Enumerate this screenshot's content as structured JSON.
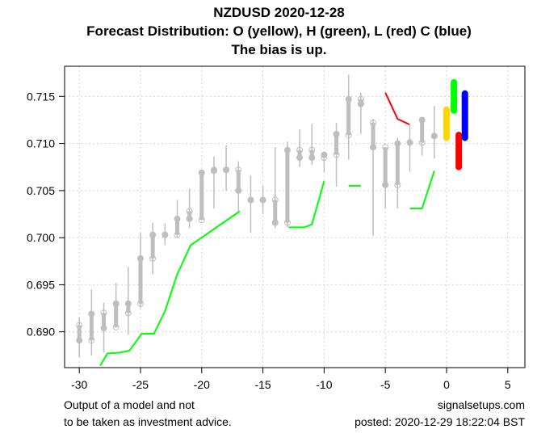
{
  "chart_data": {
    "type": "candlestick",
    "title": "NZDUSD 2020-12-28",
    "subtitle": "Forecast Distribution: O (yellow), H (green), L (red) C (blue)",
    "subtitle2": "The bias is up.",
    "xlabel": "",
    "ylabel": "",
    "xlim": [
      -31.2,
      6.4
    ],
    "ylim": [
      0.6862,
      0.7182
    ],
    "grid": true,
    "x_ticks": [
      -30,
      -25,
      -20,
      -15,
      -10,
      -5,
      0,
      5
    ],
    "x_tick_labels": [
      "-30",
      "-25",
      "-20",
      "-15",
      "-10",
      "-5",
      "0",
      "5"
    ],
    "y_ticks": [
      0.69,
      0.695,
      0.7,
      0.705,
      0.71,
      0.715
    ],
    "y_tick_labels": [
      "0.690",
      "0.695",
      "0.700",
      "0.705",
      "0.710",
      "0.715"
    ],
    "candles": [
      {
        "t": -30,
        "o": 0.6907,
        "h": 0.6915,
        "l": 0.6873,
        "c": 0.6891
      },
      {
        "t": -29,
        "o": 0.6891,
        "h": 0.6945,
        "l": 0.6875,
        "c": 0.6919
      },
      {
        "t": -28,
        "o": 0.692,
        "h": 0.6931,
        "l": 0.6878,
        "c": 0.6904
      },
      {
        "t": -27,
        "o": 0.6905,
        "h": 0.6952,
        "l": 0.6904,
        "c": 0.693
      },
      {
        "t": -26,
        "o": 0.692,
        "h": 0.6969,
        "l": 0.6897,
        "c": 0.693
      },
      {
        "t": -25,
        "o": 0.693,
        "h": 0.7005,
        "l": 0.6925,
        "c": 0.6978
      },
      {
        "t": -24,
        "o": 0.6978,
        "h": 0.7016,
        "l": 0.6961,
        "c": 0.7003
      },
      {
        "t": -23,
        "o": 0.7003,
        "h": 0.7015,
        "l": 0.6992,
        "c": 0.7003
      },
      {
        "t": -22,
        "o": 0.7003,
        "h": 0.704,
        "l": 0.7,
        "c": 0.702
      },
      {
        "t": -21,
        "o": 0.7028,
        "h": 0.7052,
        "l": 0.701,
        "c": 0.702
      },
      {
        "t": -20,
        "o": 0.7019,
        "h": 0.7069,
        "l": 0.7019,
        "c": 0.7069
      },
      {
        "t": -19,
        "o": 0.7071,
        "h": 0.7086,
        "l": 0.7031,
        "c": 0.7072
      },
      {
        "t": -18,
        "o": 0.7072,
        "h": 0.7098,
        "l": 0.705,
        "c": 0.7072
      },
      {
        "t": -17,
        "o": 0.7072,
        "h": 0.7081,
        "l": 0.7028,
        "c": 0.705
      },
      {
        "t": -16,
        "o": 0.704,
        "h": 0.7066,
        "l": 0.7005,
        "c": 0.704
      },
      {
        "t": -15,
        "o": 0.704,
        "h": 0.7055,
        "l": 0.7025,
        "c": 0.704
      },
      {
        "t": -14,
        "o": 0.704,
        "h": 0.7096,
        "l": 0.701,
        "c": 0.7016
      },
      {
        "t": -13,
        "o": 0.7016,
        "h": 0.7102,
        "l": 0.7011,
        "c": 0.7093
      },
      {
        "t": -12,
        "o": 0.7093,
        "h": 0.7115,
        "l": 0.7075,
        "c": 0.7085
      },
      {
        "t": -11,
        "o": 0.7093,
        "h": 0.7121,
        "l": 0.7077,
        "c": 0.7085
      },
      {
        "t": -10,
        "o": 0.7085,
        "h": 0.7088,
        "l": 0.7069,
        "c": 0.7088
      },
      {
        "t": -9,
        "o": 0.7088,
        "h": 0.7122,
        "l": 0.7054,
        "c": 0.711
      },
      {
        "t": -8,
        "o": 0.7109,
        "h": 0.7173,
        "l": 0.7083,
        "c": 0.7147
      },
      {
        "t": -7,
        "o": 0.7147,
        "h": 0.7154,
        "l": 0.711,
        "c": 0.7142
      },
      {
        "t": -6,
        "o": 0.7122,
        "h": 0.7126,
        "l": 0.7002,
        "c": 0.7096
      },
      {
        "t": -5,
        "o": 0.7096,
        "h": 0.7096,
        "l": 0.7031,
        "c": 0.7056
      },
      {
        "t": -4,
        "o": 0.7056,
        "h": 0.7106,
        "l": 0.7031,
        "c": 0.71
      },
      {
        "t": -3,
        "o": 0.7101,
        "h": 0.7121,
        "l": 0.707,
        "c": 0.7101
      },
      {
        "t": -2,
        "o": 0.7101,
        "h": 0.7125,
        "l": 0.7087,
        "c": 0.7125
      },
      {
        "t": -1,
        "o": 0.7108,
        "h": 0.714,
        "l": 0.7084,
        "c": 0.7108
      }
    ],
    "green_lines": [
      [
        [
          -28.3,
          0.6864
        ],
        [
          -27.7,
          0.6877
        ],
        [
          -26.7,
          0.6878
        ],
        [
          -25.9,
          0.688
        ],
        [
          -24.9,
          0.6898
        ],
        [
          -23.9,
          0.6898
        ],
        [
          -23.0,
          0.6922
        ],
        [
          -22.0,
          0.6961
        ],
        [
          -20.9,
          0.6992
        ],
        [
          -19.9,
          0.7001
        ],
        [
          -16.9,
          0.7028
        ]
      ],
      [
        [
          -12.9,
          0.7011
        ],
        [
          -11.6,
          0.7011
        ],
        [
          -11.0,
          0.7014
        ],
        [
          -10.0,
          0.706
        ]
      ],
      [
        [
          -8.0,
          0.7055
        ],
        [
          -7.0,
          0.7055
        ]
      ],
      [
        [
          -3.0,
          0.7031
        ],
        [
          -2.0,
          0.7031
        ],
        [
          -1.0,
          0.7071
        ]
      ]
    ],
    "red_lines": [
      [
        [
          -5.0,
          0.7154
        ],
        [
          -4.0,
          0.7126
        ],
        [
          -3.0,
          0.712
        ]
      ]
    ],
    "forecast": [
      {
        "name": "O",
        "color": "#ffd700",
        "t": 0.0,
        "min": 0.7106,
        "max": 0.7136
      },
      {
        "name": "H",
        "color": "#00ff00",
        "t": 0.6,
        "min": 0.7135,
        "max": 0.7165
      },
      {
        "name": "L",
        "color": "#ff0000",
        "t": 1.0,
        "min": 0.7075,
        "max": 0.7109
      },
      {
        "name": "C",
        "color": "#0000ff",
        "t": 1.5,
        "min": 0.7106,
        "max": 0.7153
      }
    ],
    "colors": {
      "candle": "#bebebe",
      "green_line": "#00ff00",
      "red_line": "#ff0000",
      "grid": "#d3d3d3"
    }
  },
  "footer": {
    "left_line1": "Output of a model and not",
    "left_line2": "to be taken as investment advice.",
    "right_line1": "signalsetups.com",
    "right_line2": "posted: 2020-12-29 18:22:04 BST"
  }
}
